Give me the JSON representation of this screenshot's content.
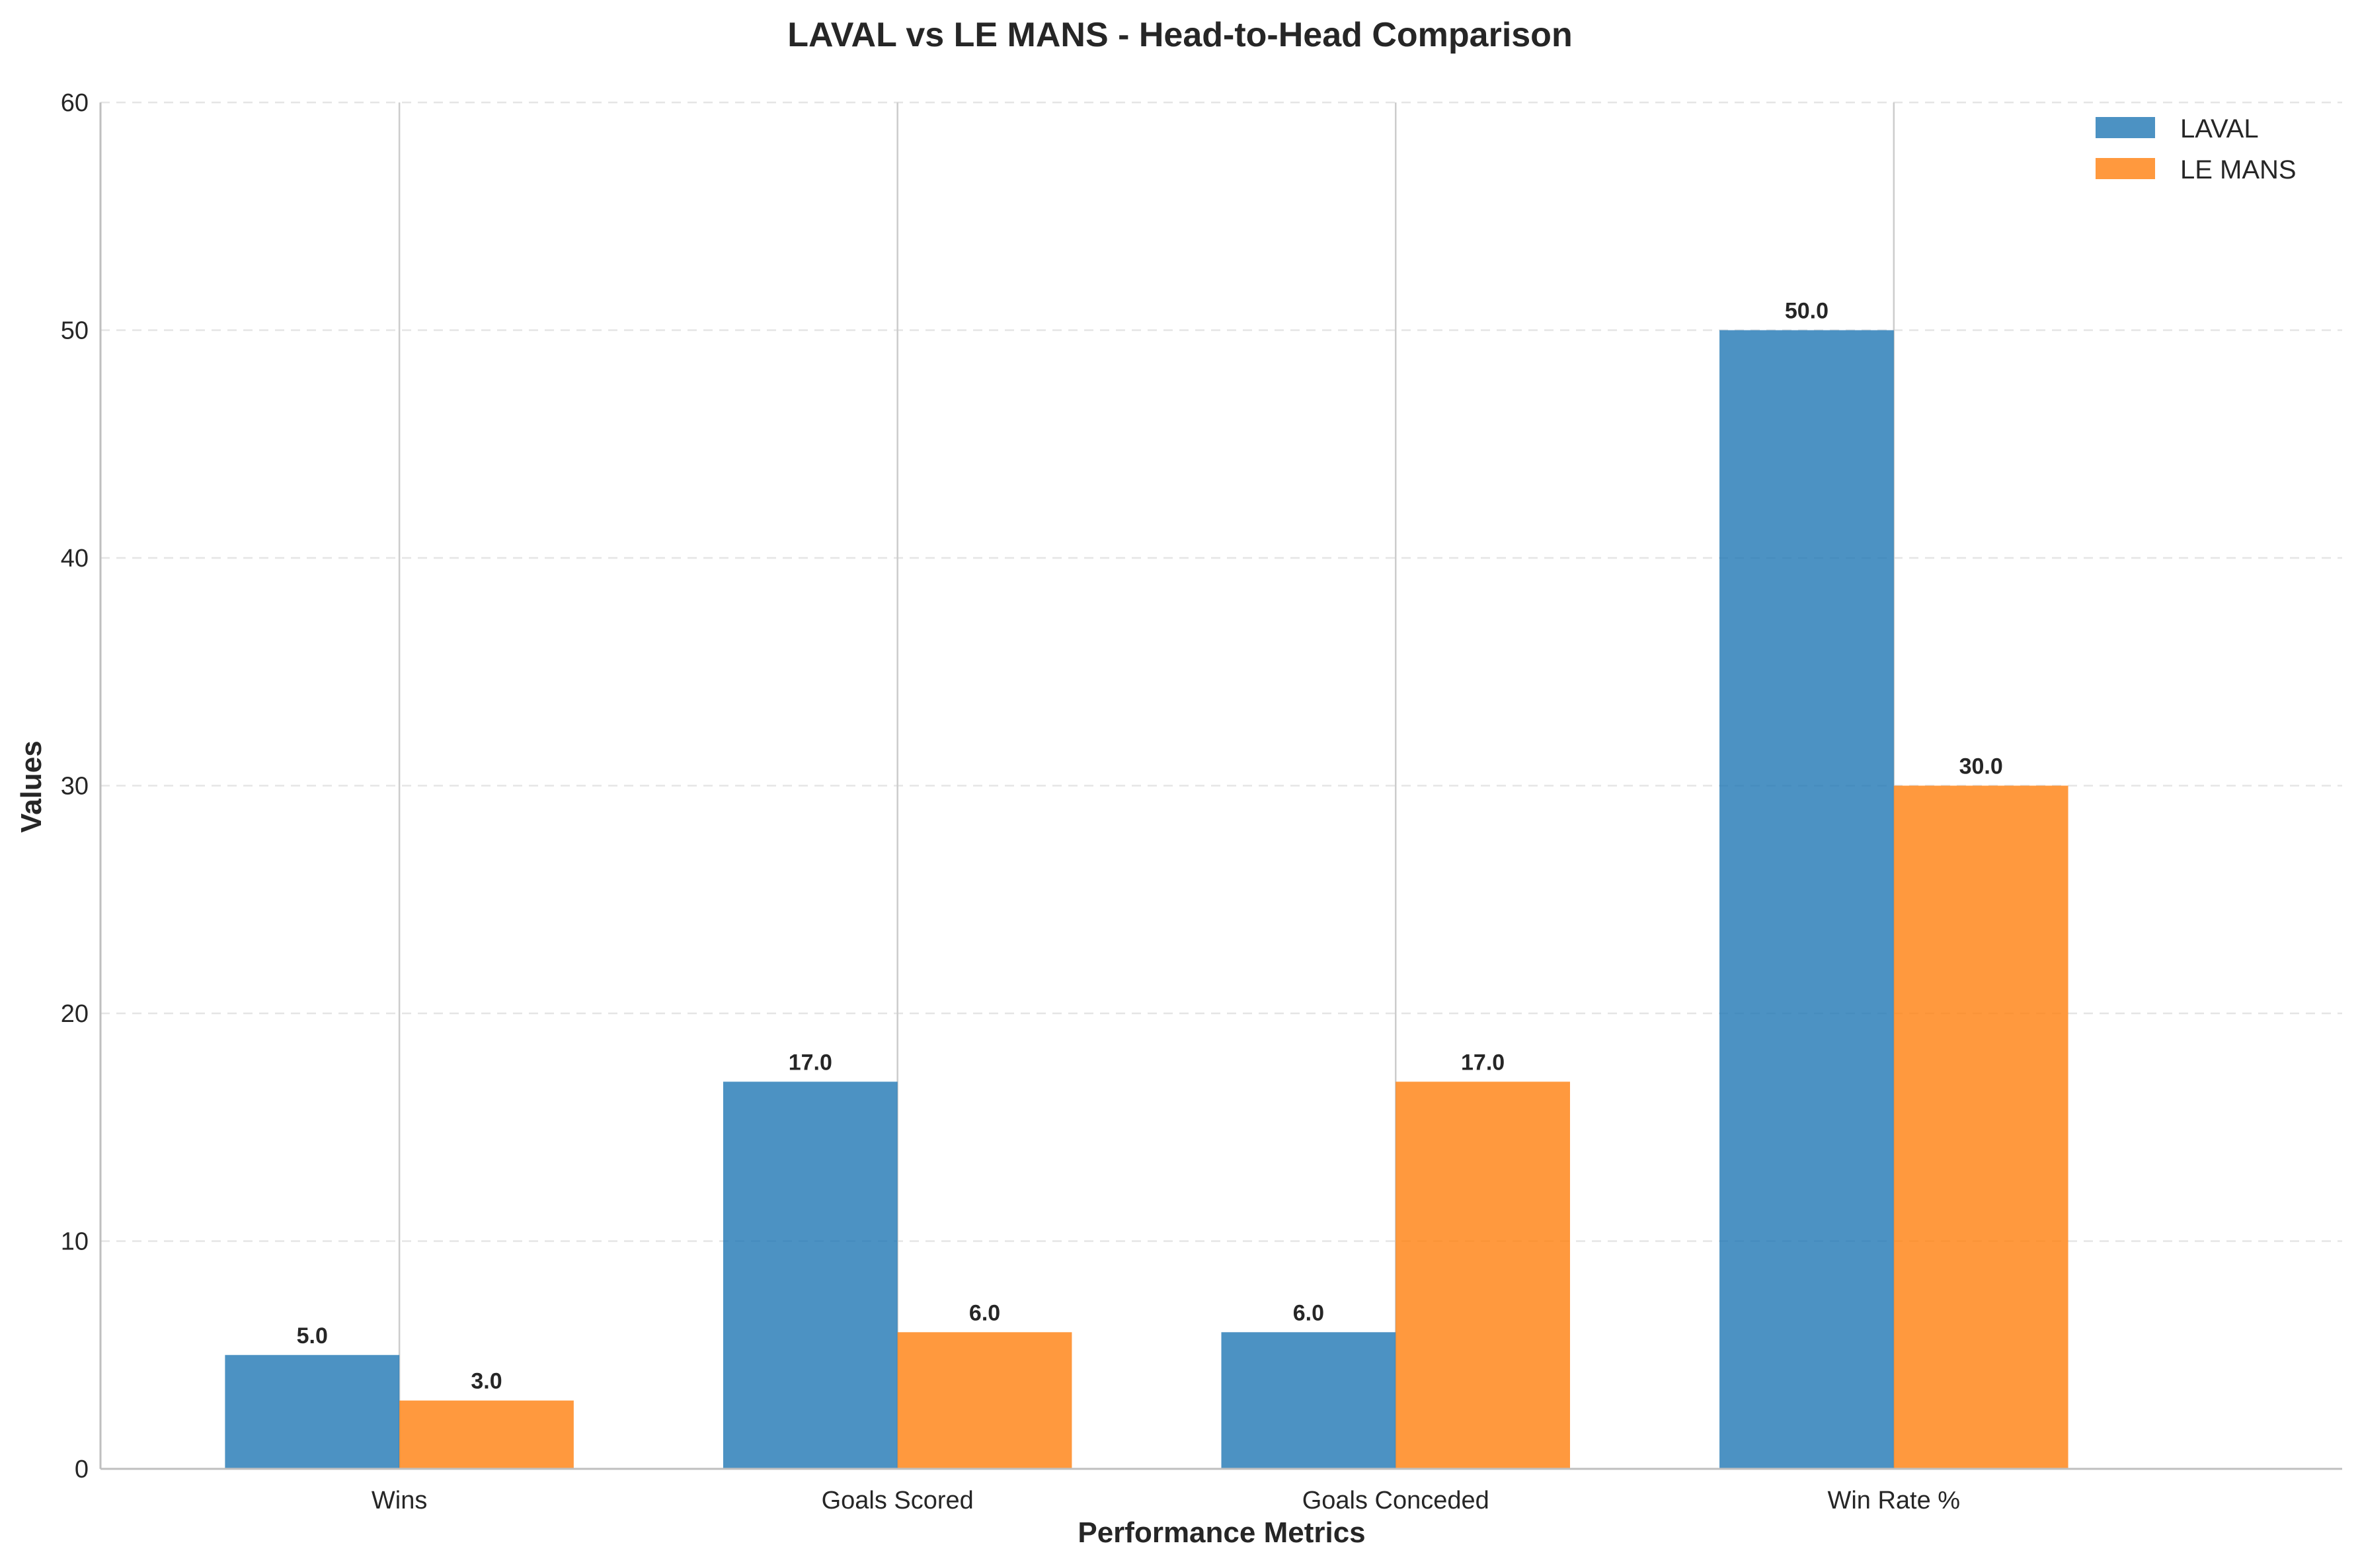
{
  "chart_data": {
    "type": "bar",
    "title": "LAVAL vs LE MANS - Head-to-Head Comparison",
    "xlabel": "Performance Metrics",
    "ylabel": "Values",
    "categories": [
      "Wins",
      "Goals Scored",
      "Goals Conceded",
      "Win Rate %"
    ],
    "series": [
      {
        "name": "LAVAL",
        "color": "#1f77b4",
        "values": [
          5.0,
          17.0,
          6.0,
          50.0
        ],
        "labels": [
          "5.0",
          "17.0",
          "6.0",
          "50.0"
        ]
      },
      {
        "name": "LE MANS",
        "color": "#ff7f0e",
        "values": [
          3.0,
          6.0,
          17.0,
          30.0
        ],
        "labels": [
          "3.0",
          "6.0",
          "17.0",
          "30.0"
        ]
      }
    ],
    "ylim": [
      0,
      60
    ],
    "yticks": [
      0,
      10,
      20,
      30,
      40,
      50,
      60
    ],
    "ytick_labels": [
      "0",
      "10",
      "20",
      "30",
      "40",
      "50",
      "60"
    ],
    "grid": "horizontal dashed",
    "legend": "top-right"
  }
}
